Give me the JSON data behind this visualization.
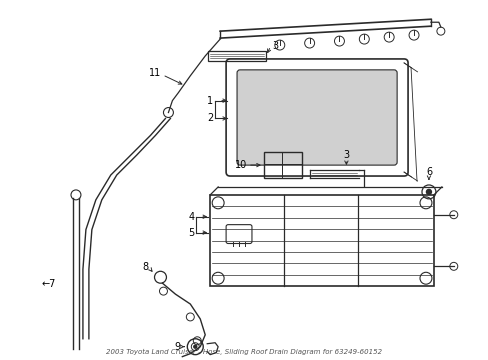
{
  "bg_color": "#ffffff",
  "line_color": "#2a2a2a",
  "label_color": "#000000",
  "figsize": [
    4.89,
    3.6
  ],
  "dpi": 100,
  "title": "2003 Toyota Land Cruiser - Hose, Sliding Roof Drain Diagram for 63249-60152"
}
